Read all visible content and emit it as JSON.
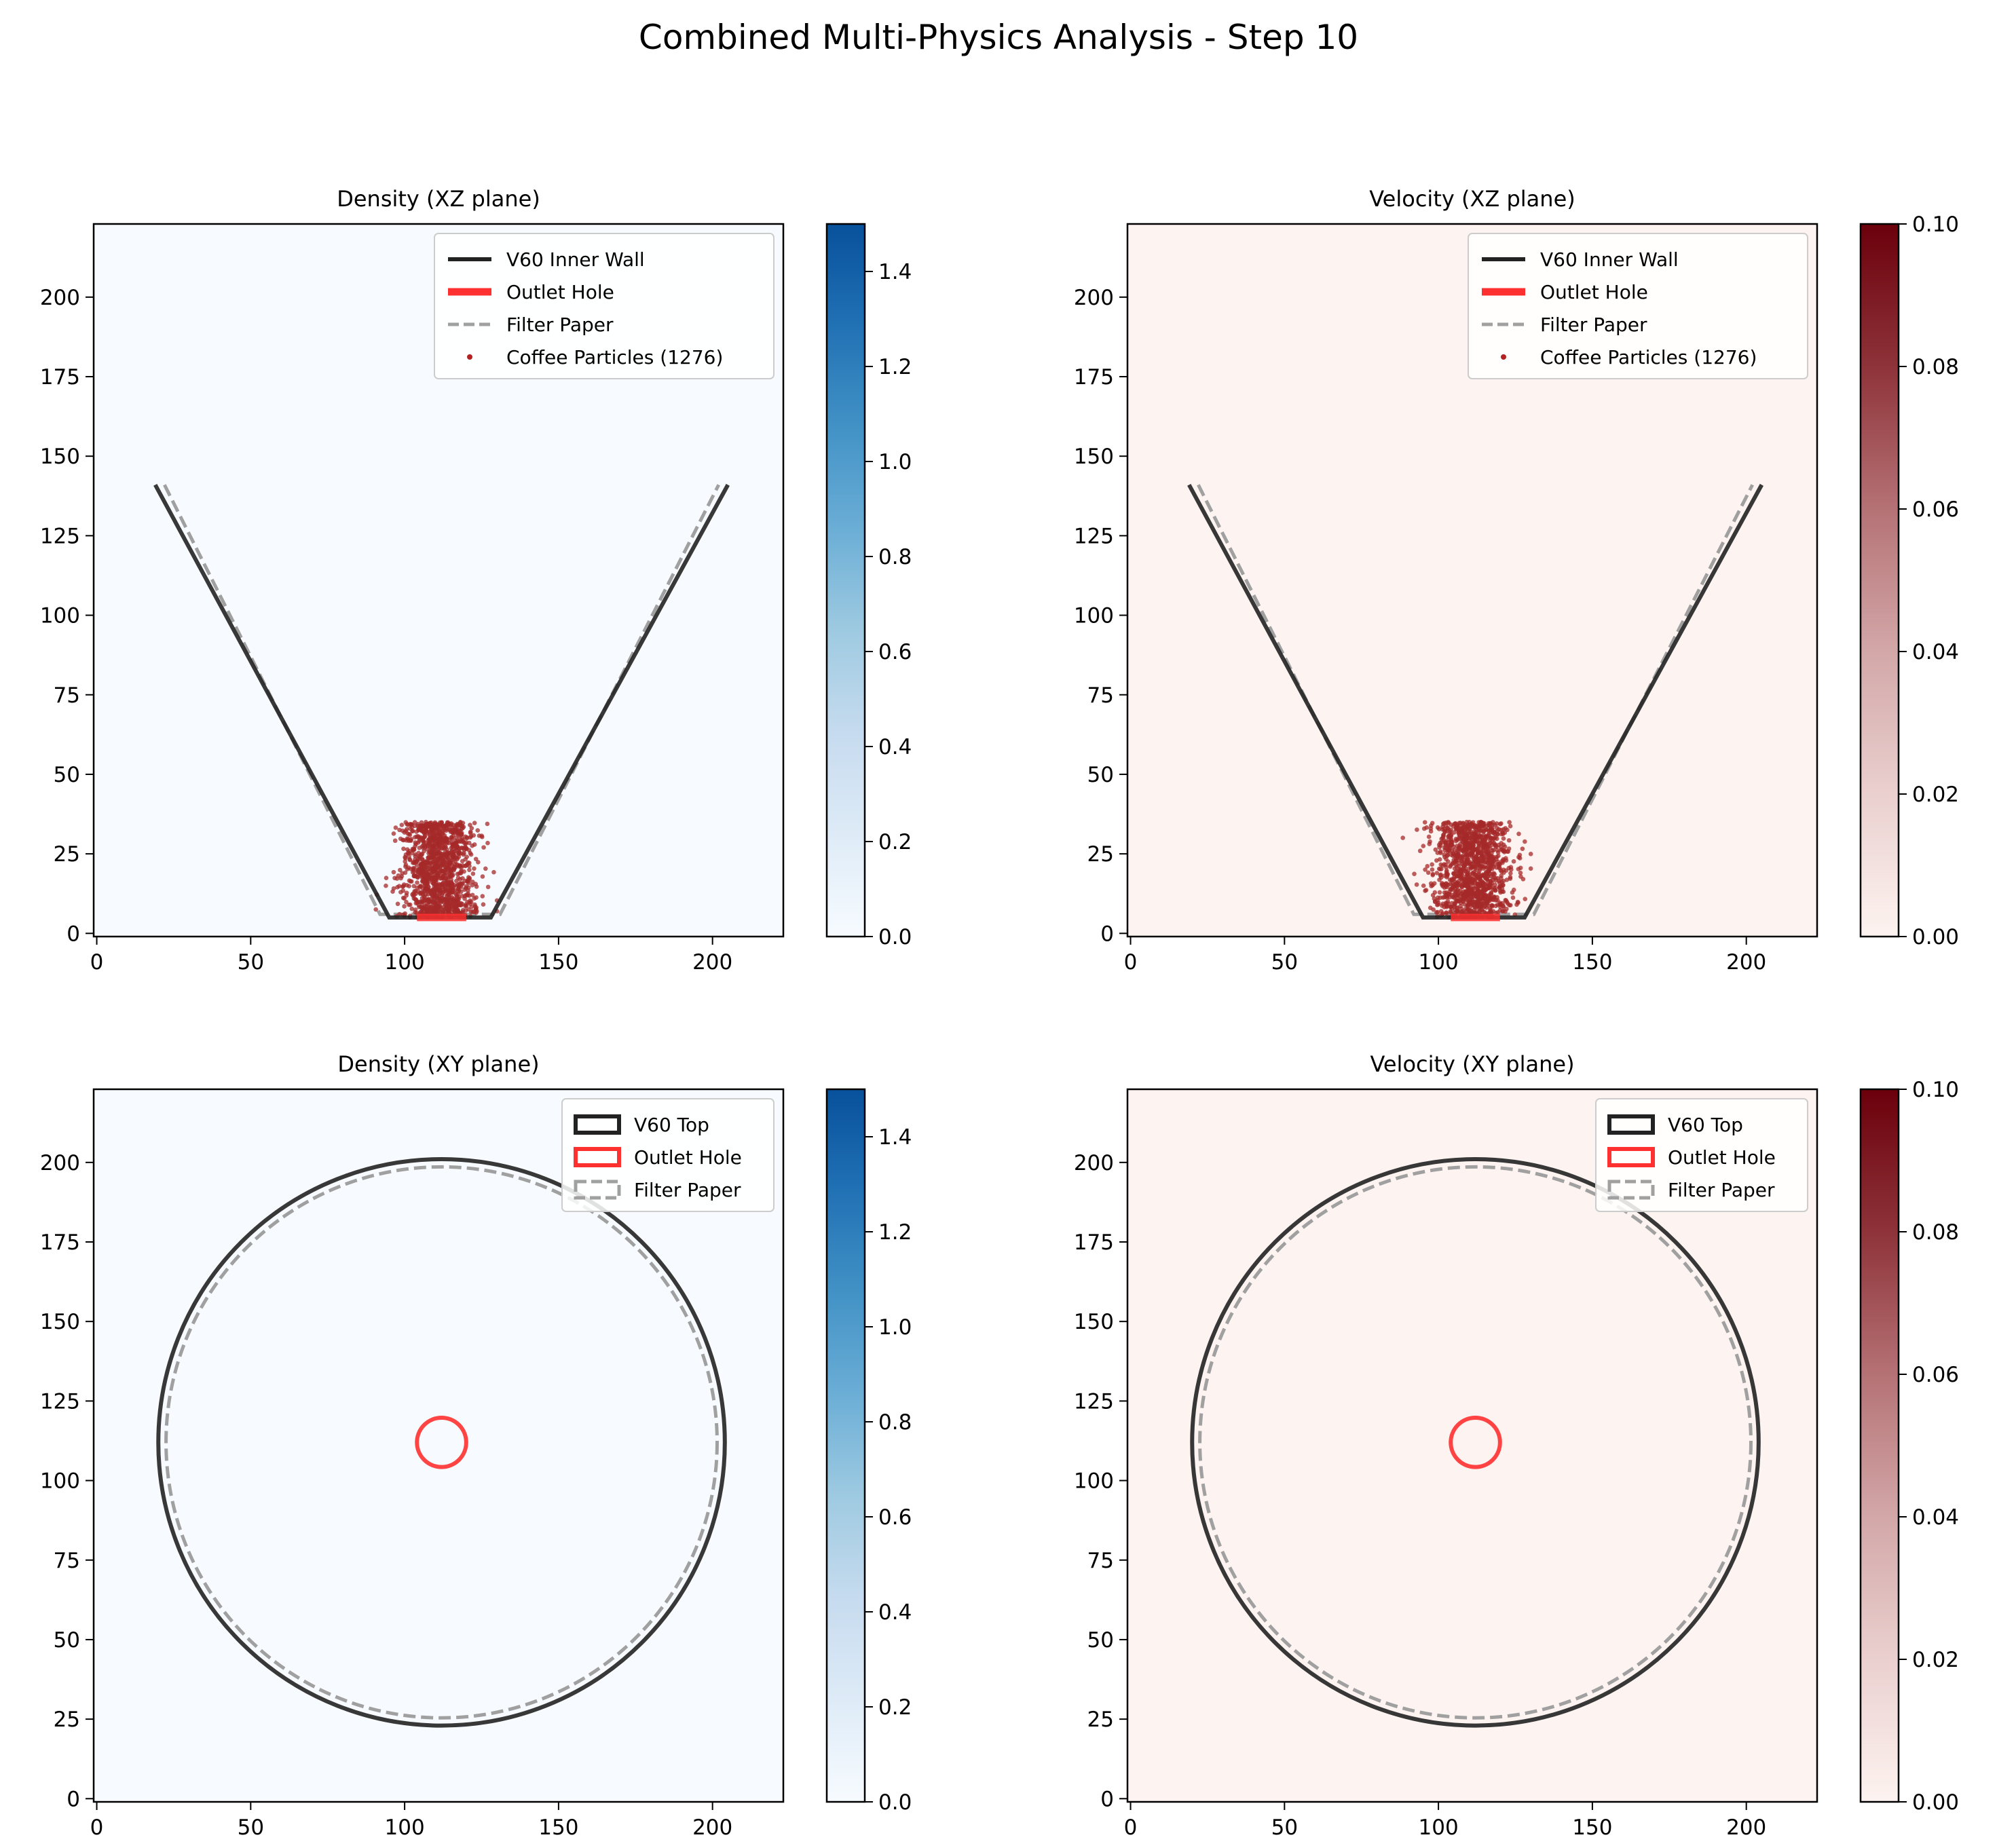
{
  "figure": {
    "title": "Combined Multi-Physics Analysis - Step 10"
  },
  "chart_data": [
    {
      "id": "density-xz",
      "type": "heatmap",
      "title": "Density (XZ plane)",
      "plane": "XZ",
      "field_value": 0.0,
      "colormap": "Blues",
      "background_color": "#f7fbff",
      "xlim": [
        -1,
        223
      ],
      "ylim": [
        -1,
        223
      ],
      "xticks": [
        0,
        50,
        100,
        150,
        200
      ],
      "yticks": [
        0,
        25,
        50,
        75,
        100,
        125,
        150,
        175,
        200
      ],
      "colorbar": {
        "min": 0.0,
        "max": 1.5,
        "ticks": [
          "0.0",
          "0.2",
          "0.4",
          "0.6",
          "0.8",
          "1.0",
          "1.2",
          "1.4"
        ],
        "tick_values": [
          0,
          0.2,
          0.4,
          0.6,
          0.8,
          1.0,
          1.2,
          1.4
        ],
        "stops": [
          "#f7fbff",
          "#deebf7",
          "#c6dbef",
          "#9ecae1",
          "#6baed6",
          "#4292c6",
          "#2171b5",
          "#08519c"
        ]
      },
      "legend": {
        "placement": "top-right",
        "entries": [
          {
            "label": "V60 Inner Wall",
            "style": "line",
            "color": "#222222"
          },
          {
            "label": "Outlet Hole",
            "style": "thick-line",
            "color": "#ff3030"
          },
          {
            "label": "Filter Paper",
            "style": "dashed",
            "color": "#a0a0a0"
          },
          {
            "label": "Coffee Particles (1276)",
            "style": "dot",
            "color": "#b22222"
          }
        ]
      },
      "wall": {
        "x": [
          19,
          95,
          128,
          205
        ],
        "y": [
          141,
          5,
          5,
          141
        ]
      },
      "filter": {
        "x": [
          22,
          92,
          131,
          202
        ],
        "y": [
          141,
          6,
          6,
          141
        ]
      },
      "outlet": {
        "x": [
          104,
          120
        ],
        "y": [
          5,
          5
        ]
      },
      "particles": {
        "count": 1276,
        "x_center": 111,
        "x_spread": 6,
        "x_range": [
          88,
          130
        ],
        "y_range": [
          5,
          35
        ],
        "color": "#a52a2a"
      }
    },
    {
      "id": "velocity-xz",
      "type": "heatmap",
      "title": "Velocity (XZ plane)",
      "plane": "XZ",
      "field_value": 0.0,
      "colormap": "Reds",
      "background_color": "#fdf3f0",
      "xlim": [
        -1,
        223
      ],
      "ylim": [
        -1,
        223
      ],
      "xticks": [
        0,
        50,
        100,
        150,
        200
      ],
      "yticks": [
        0,
        25,
        50,
        75,
        100,
        125,
        150,
        175,
        200
      ],
      "colorbar": {
        "min": 0.0,
        "max": 0.1,
        "ticks": [
          "0.00",
          "0.02",
          "0.04",
          "0.06",
          "0.08",
          "0.10"
        ],
        "tick_values": [
          0,
          0.02,
          0.04,
          0.06,
          0.08,
          0.1
        ],
        "stops": [
          "#fdf3f0",
          "#ead0cf",
          "#d3a7a8",
          "#b57275",
          "#8e3339",
          "#6b000b"
        ]
      },
      "legend": {
        "placement": "top-right",
        "entries": [
          {
            "label": "V60 Inner Wall",
            "style": "line",
            "color": "#222222"
          },
          {
            "label": "Outlet Hole",
            "style": "thick-line",
            "color": "#ff3030"
          },
          {
            "label": "Filter Paper",
            "style": "dashed",
            "color": "#a0a0a0"
          },
          {
            "label": "Coffee Particles (1276)",
            "style": "dot",
            "color": "#b22222"
          }
        ]
      },
      "wall": {
        "x": [
          19,
          95,
          128,
          205
        ],
        "y": [
          141,
          5,
          5,
          141
        ]
      },
      "filter": {
        "x": [
          22,
          92,
          131,
          202
        ],
        "y": [
          141,
          6,
          6,
          141
        ]
      },
      "outlet": {
        "x": [
          104,
          120
        ],
        "y": [
          5,
          5
        ]
      },
      "particles": {
        "count": 1276,
        "x_center": 111,
        "x_spread": 6,
        "x_range": [
          88,
          130
        ],
        "y_range": [
          5,
          35
        ],
        "color": "#a52a2a"
      }
    },
    {
      "id": "density-xy",
      "type": "heatmap",
      "title": "Density (XY plane)",
      "plane": "XY",
      "field_value": 0.0,
      "colormap": "Blues",
      "background_color": "#f7fbff",
      "xlim": [
        -1,
        223
      ],
      "ylim": [
        -1,
        223
      ],
      "xticks": [
        0,
        50,
        100,
        150,
        200
      ],
      "yticks": [
        0,
        25,
        50,
        75,
        100,
        125,
        150,
        175,
        200
      ],
      "colorbar": {
        "min": 0.0,
        "max": 1.5,
        "ticks": [
          "0.0",
          "0.2",
          "0.4",
          "0.6",
          "0.8",
          "1.0",
          "1.2",
          "1.4"
        ],
        "tick_values": [
          0,
          0.2,
          0.4,
          0.6,
          0.8,
          1.0,
          1.2,
          1.4
        ],
        "stops": [
          "#f7fbff",
          "#deebf7",
          "#c6dbef",
          "#9ecae1",
          "#6baed6",
          "#4292c6",
          "#2171b5",
          "#08519c"
        ]
      },
      "legend": {
        "placement": "top-right",
        "entries": [
          {
            "label": "V60 Top",
            "style": "box",
            "color": "#222222"
          },
          {
            "label": "Outlet Hole",
            "style": "box",
            "color": "#ff3030"
          },
          {
            "label": "Filter Paper",
            "style": "dashed-box",
            "color": "#a0a0a0"
          }
        ]
      },
      "top_circle": {
        "cx": 112,
        "cy": 112,
        "r": 92
      },
      "filter_circle": {
        "cx": 112,
        "cy": 112,
        "r": 89.5
      },
      "outlet_circle": {
        "cx": 112,
        "cy": 112,
        "r": 8
      }
    },
    {
      "id": "velocity-xy",
      "type": "heatmap",
      "title": "Velocity (XY plane)",
      "plane": "XY",
      "field_value": 0.0,
      "colormap": "Reds",
      "background_color": "#fdf3f0",
      "xlim": [
        -1,
        223
      ],
      "ylim": [
        -1,
        223
      ],
      "xticks": [
        0,
        50,
        100,
        150,
        200
      ],
      "yticks": [
        0,
        25,
        50,
        75,
        100,
        125,
        150,
        175,
        200
      ],
      "colorbar": {
        "min": 0.0,
        "max": 0.1,
        "ticks": [
          "0.00",
          "0.02",
          "0.04",
          "0.06",
          "0.08",
          "0.10"
        ],
        "tick_values": [
          0,
          0.02,
          0.04,
          0.06,
          0.08,
          0.1
        ],
        "stops": [
          "#fdf3f0",
          "#ead0cf",
          "#d3a7a8",
          "#b57275",
          "#8e3339",
          "#6b000b"
        ]
      },
      "legend": {
        "placement": "top-right",
        "entries": [
          {
            "label": "V60 Top",
            "style": "box",
            "color": "#222222"
          },
          {
            "label": "Outlet Hole",
            "style": "box",
            "color": "#ff3030"
          },
          {
            "label": "Filter Paper",
            "style": "dashed-box",
            "color": "#a0a0a0"
          }
        ]
      },
      "top_circle": {
        "cx": 112,
        "cy": 112,
        "r": 92
      },
      "filter_circle": {
        "cx": 112,
        "cy": 112,
        "r": 89.5
      },
      "outlet_circle": {
        "cx": 112,
        "cy": 112,
        "r": 8
      }
    }
  ]
}
